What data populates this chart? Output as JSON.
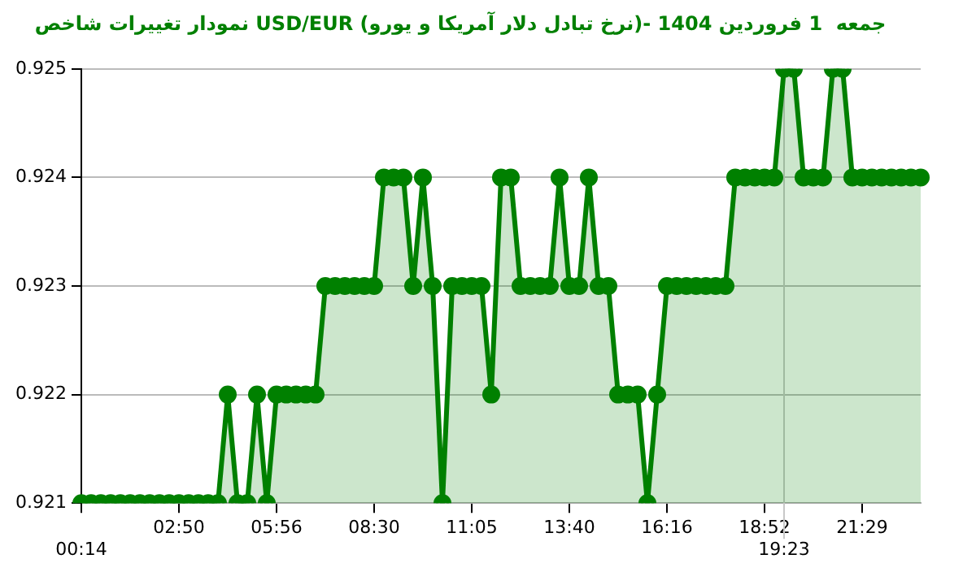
{
  "chart_data": {
    "type": "area",
    "title": "نمودار تغییرات شاخص USD/EUR (نرخ تبادل دلار آمریکا و یورو)- جمعه  1 فروردین 1404",
    "categories": [
      "00:14",
      null,
      null,
      null,
      null,
      null,
      null,
      null,
      null,
      null,
      "02:50",
      null,
      null,
      null,
      null,
      null,
      null,
      null,
      null,
      null,
      "05:56",
      null,
      null,
      null,
      null,
      null,
      null,
      null,
      null,
      null,
      "08:30",
      null,
      null,
      null,
      null,
      null,
      null,
      null,
      null,
      null,
      "11:05",
      null,
      null,
      null,
      null,
      null,
      null,
      null,
      null,
      null,
      "13:40",
      null,
      null,
      null,
      null,
      null,
      null,
      null,
      null,
      null,
      "16:16",
      null,
      null,
      null,
      null,
      null,
      null,
      null,
      null,
      null,
      "18:52",
      null,
      "19:23",
      null,
      null,
      null,
      null,
      null,
      null,
      null,
      "21:29",
      null,
      null,
      null,
      null,
      null,
      null
    ],
    "series": [
      {
        "color": "#008000",
        "values": [
          0.921,
          0.921,
          0.921,
          0.921,
          0.921,
          0.921,
          0.921,
          0.921,
          0.921,
          0.921,
          0.921,
          0.921,
          0.921,
          0.921,
          0.921,
          0.922,
          0.921,
          0.921,
          0.922,
          0.921,
          0.922,
          0.922,
          0.922,
          0.922,
          0.922,
          0.923,
          0.923,
          0.923,
          0.923,
          0.923,
          0.923,
          0.924,
          0.924,
          0.924,
          0.923,
          0.924,
          0.923,
          0.921,
          0.923,
          0.923,
          0.923,
          0.923,
          0.922,
          0.924,
          0.924,
          0.923,
          0.923,
          0.923,
          0.923,
          0.924,
          0.923,
          0.923,
          0.924,
          0.923,
          0.923,
          0.922,
          0.922,
          0.922,
          0.921,
          0.922,
          0.923,
          0.923,
          0.923,
          0.923,
          0.923,
          0.923,
          0.923,
          0.924,
          0.924,
          0.924,
          0.924,
          0.924,
          0.925,
          0.925,
          0.924,
          0.924,
          0.924,
          0.925,
          0.925,
          0.924,
          0.924,
          0.924,
          0.924,
          0.924,
          0.924,
          0.924,
          0.924
        ]
      }
    ],
    "ylim": [
      0.921,
      0.925
    ],
    "yticks": [
      0.921,
      0.922,
      0.923,
      0.924,
      0.925
    ],
    "ref_lines": [
      {
        "axis": "x",
        "value": "19:23",
        "color": "#c8c8c8"
      }
    ],
    "grid": "y",
    "legend": false,
    "marker": "circle",
    "line_style": "solid"
  }
}
